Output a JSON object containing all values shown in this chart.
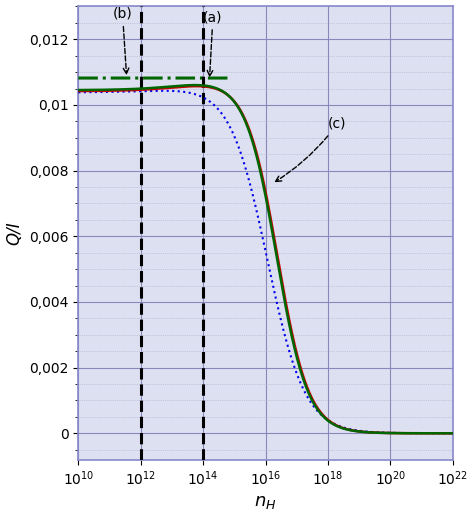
{
  "ylabel": "Q/I",
  "xmin": 10000000000.0,
  "xmax": 1e+22,
  "ymin": -0.0008,
  "ymax": 0.013,
  "yticks": [
    0,
    0.002,
    0.004,
    0.006,
    0.008,
    0.01,
    0.012
  ],
  "ytick_labels": [
    "0",
    "0,002",
    "0,004",
    "0,006",
    "0,008",
    "0,01",
    "0,012"
  ],
  "vline1": 1000000000000.0,
  "vline2": 100000000000000.0,
  "green_hline": 0.01082,
  "plateau_green": 0.01082,
  "plateau_red": 0.01082,
  "plateau_blue": 0.0104,
  "bg_color": "#dde0f0",
  "grid_major_color": "#8888bb",
  "grid_minor_color": "#aaaacc",
  "line_green": "#006600",
  "line_red": "#cc0000",
  "line_blue": "#0000ee",
  "spine_color": "#8888cc"
}
